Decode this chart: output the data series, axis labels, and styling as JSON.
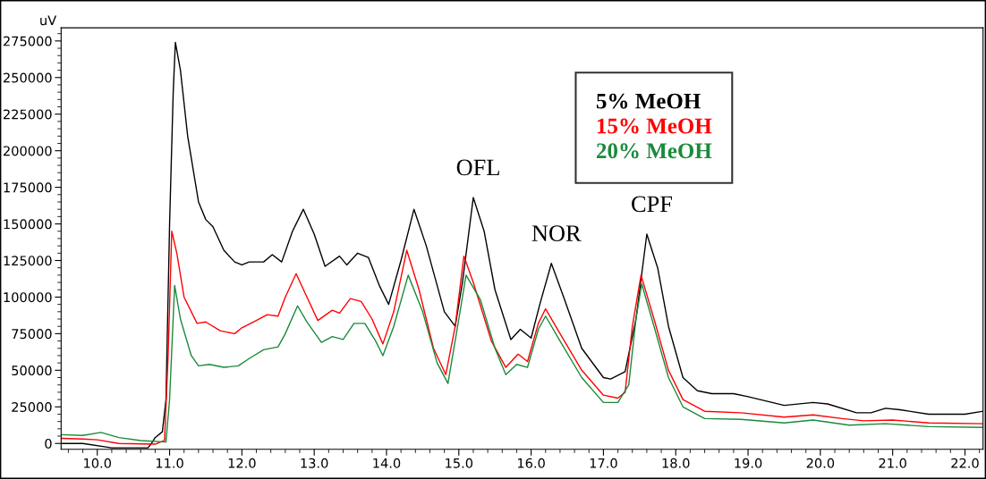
{
  "chart_data": {
    "type": "line",
    "ylabel": "uV",
    "xlim": [
      9.5,
      22.25
    ],
    "xticks": [
      {
        "value": 10,
        "label": "10.0"
      },
      {
        "value": 11,
        "label": "11.0"
      },
      {
        "value": 12,
        "label": "12.0"
      },
      {
        "value": 13,
        "label": "13.0"
      },
      {
        "value": 14,
        "label": "14.0"
      },
      {
        "value": 15,
        "label": "15.0"
      },
      {
        "value": 16,
        "label": "16.0"
      },
      {
        "value": 17,
        "label": "17.0"
      },
      {
        "value": 18,
        "label": "18.0"
      },
      {
        "value": 19,
        "label": "19.0"
      },
      {
        "value": 20,
        "label": "20.0"
      },
      {
        "value": 21,
        "label": "21.0"
      },
      {
        "value": 22,
        "label": "22.0"
      }
    ],
    "ylim": [
      -4000,
      284000
    ],
    "yticks": [
      0,
      25000,
      50000,
      75000,
      100000,
      125000,
      150000,
      175000,
      200000,
      225000,
      250000,
      275000
    ],
    "grid": false,
    "legend": "top right",
    "marker": "none",
    "line_style": "solid",
    "annotations": [
      {
        "text": "OFL",
        "x": 15.2,
        "y": 168000
      },
      {
        "text": "NOR",
        "x": 16.28,
        "y": 123000
      },
      {
        "text": "CPF",
        "x": 17.6,
        "y": 143000
      }
    ],
    "series": [
      {
        "name": "5% MeOH",
        "color": "#000000",
        "x": [
          9.5,
          9.8,
          10.2,
          10.7,
          10.75,
          10.8,
          10.9,
          10.95,
          11.0,
          11.05,
          11.08,
          11.15,
          11.25,
          11.4,
          11.5,
          11.6,
          11.75,
          11.9,
          12.0,
          12.1,
          12.3,
          12.42,
          12.55,
          12.7,
          12.85,
          13.0,
          13.15,
          13.35,
          13.45,
          13.6,
          13.75,
          13.9,
          14.03,
          14.2,
          14.38,
          14.55,
          14.8,
          14.95,
          15.05,
          15.2,
          15.35,
          15.5,
          15.72,
          15.85,
          16.0,
          16.12,
          16.28,
          16.45,
          16.7,
          17.0,
          17.1,
          17.3,
          17.45,
          17.6,
          17.75,
          17.9,
          18.1,
          18.3,
          18.5,
          18.8,
          19.0,
          19.5,
          19.9,
          20.1,
          20.5,
          20.7,
          20.9,
          21.1,
          21.5,
          22.0,
          22.25
        ],
        "values": [
          0,
          0,
          -3000,
          -3000,
          0,
          4000,
          8000,
          30000,
          150000,
          240000,
          274000,
          255000,
          210000,
          165000,
          153000,
          148000,
          132000,
          124000,
          122000,
          124000,
          124000,
          129000,
          124000,
          145000,
          160000,
          143000,
          121000,
          128000,
          122000,
          130000,
          127000,
          108000,
          95000,
          125000,
          160000,
          135000,
          90000,
          80000,
          110000,
          168000,
          145000,
          105000,
          71000,
          78000,
          72000,
          95000,
          123000,
          100000,
          65000,
          45000,
          44000,
          49000,
          85000,
          143000,
          120000,
          80000,
          45000,
          36000,
          34000,
          34000,
          32000,
          26000,
          28000,
          27000,
          21000,
          21000,
          24000,
          23000,
          20000,
          20000,
          22000
        ]
      },
      {
        "name": "15% MeOH",
        "color": "#ff0000",
        "x": [
          9.5,
          9.8,
          10.0,
          10.3,
          10.8,
          10.93,
          10.98,
          11.03,
          11.1,
          11.2,
          11.38,
          11.5,
          11.7,
          11.9,
          12.0,
          12.2,
          12.35,
          12.5,
          12.6,
          12.75,
          12.9,
          13.05,
          13.25,
          13.35,
          13.5,
          13.65,
          13.8,
          13.95,
          14.1,
          14.28,
          14.45,
          14.65,
          14.82,
          14.95,
          15.07,
          15.2,
          15.45,
          15.65,
          15.82,
          15.95,
          16.1,
          16.2,
          16.4,
          16.7,
          17.0,
          17.2,
          17.3,
          17.4,
          17.52,
          17.7,
          17.9,
          18.1,
          18.4,
          18.9,
          19.5,
          19.9,
          20.3,
          20.6,
          21.0,
          21.5,
          22.25
        ],
        "values": [
          3500,
          3000,
          2500,
          0,
          -500,
          2000,
          60000,
          145000,
          130000,
          100000,
          82000,
          83000,
          77000,
          75000,
          79000,
          84000,
          88000,
          87000,
          100000,
          116000,
          100000,
          84000,
          91000,
          89000,
          99000,
          97000,
          85000,
          68000,
          90000,
          132000,
          105000,
          65000,
          47000,
          80000,
          128000,
          110000,
          70000,
          52000,
          61000,
          56000,
          82000,
          92000,
          75000,
          50000,
          33000,
          31000,
          35000,
          80000,
          115000,
          85000,
          50000,
          30000,
          22000,
          21000,
          18000,
          19500,
          17000,
          15500,
          16000,
          14000,
          13500
        ]
      },
      {
        "name": "20% MeOH",
        "color": "#1a8a3c",
        "x": [
          9.5,
          9.8,
          10.05,
          10.3,
          10.6,
          10.95,
          11.0,
          11.07,
          11.15,
          11.3,
          11.4,
          11.55,
          11.75,
          11.95,
          12.1,
          12.3,
          12.5,
          12.6,
          12.77,
          12.9,
          13.1,
          13.25,
          13.4,
          13.55,
          13.7,
          13.85,
          13.95,
          14.1,
          14.3,
          14.5,
          14.7,
          14.85,
          15.0,
          15.1,
          15.3,
          15.5,
          15.65,
          15.8,
          15.95,
          16.1,
          16.2,
          16.4,
          16.7,
          17.0,
          17.2,
          17.35,
          17.45,
          17.53,
          17.7,
          17.9,
          18.1,
          18.4,
          18.9,
          19.5,
          19.9,
          20.4,
          20.9,
          21.5,
          22.25
        ],
        "values": [
          6000,
          5500,
          7500,
          4000,
          2000,
          1000,
          30000,
          108000,
          85000,
          60000,
          53000,
          54000,
          52000,
          53000,
          58000,
          64000,
          66000,
          75000,
          94000,
          83000,
          69000,
          73000,
          71000,
          82000,
          82000,
          70000,
          60000,
          80000,
          115000,
          90000,
          55000,
          41000,
          85000,
          115000,
          98000,
          65000,
          47000,
          54000,
          52000,
          78000,
          87000,
          70000,
          45000,
          28000,
          28000,
          40000,
          85000,
          109000,
          80000,
          45000,
          25000,
          17000,
          16500,
          14000,
          16000,
          12500,
          13500,
          11500,
          11000
        ]
      }
    ]
  }
}
